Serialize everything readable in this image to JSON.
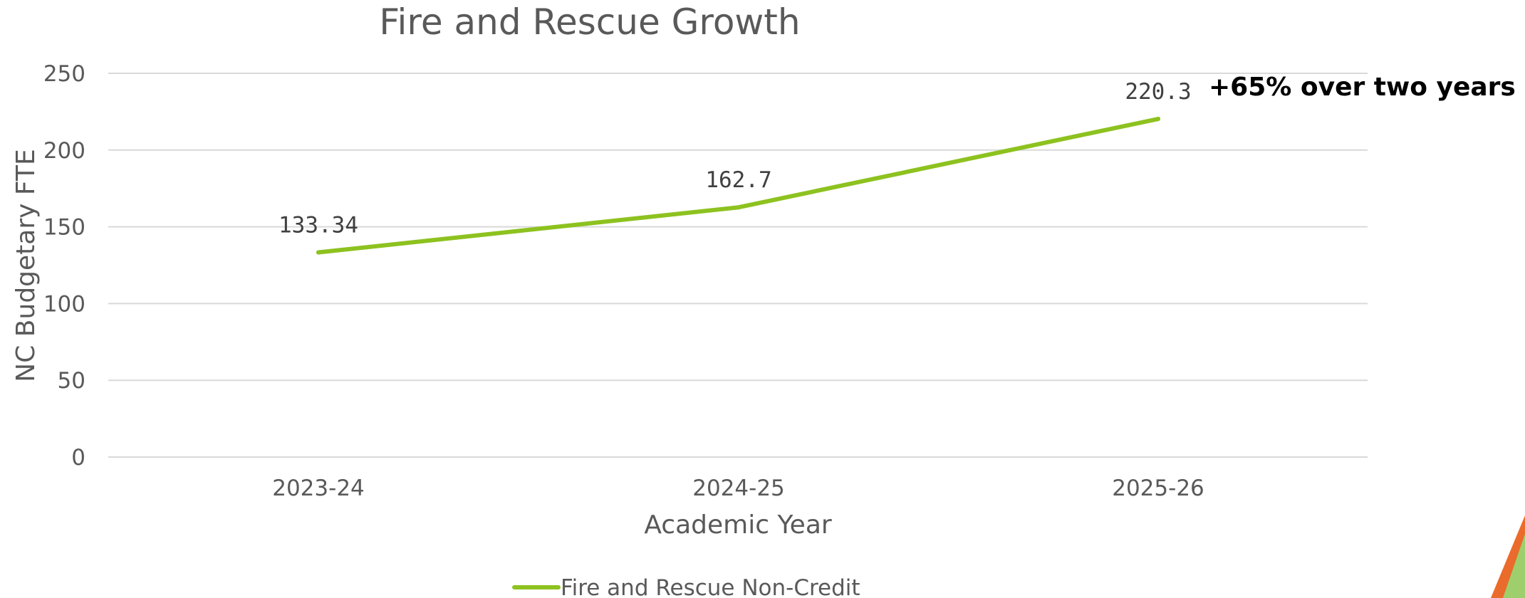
{
  "chart_data": {
    "type": "line",
    "title": "Fire and Rescue Growth",
    "xlabel": "Academic Year",
    "ylabel": "NC Budgetary FTE",
    "categories": [
      "2023-24",
      "2024-25",
      "2025-26"
    ],
    "series": [
      {
        "name": "Fire and Rescue Non-Credit",
        "values": [
          133.34,
          162.7,
          220.3
        ],
        "data_labels": [
          "133.34",
          "162.7",
          "220.3"
        ]
      }
    ],
    "ylim": [
      0,
      250
    ],
    "yticks": [
      0,
      50,
      100,
      150,
      200,
      250
    ],
    "grid": true,
    "legend": "bottom",
    "annotation": "+65% over two years"
  },
  "colors": {
    "series_line": "#8dc21f",
    "text": "#595959",
    "gridline": "#d9d9d9",
    "annotation": "#000000",
    "corner_green": "#9ecf6c",
    "corner_orange": "#ea6b2c"
  }
}
